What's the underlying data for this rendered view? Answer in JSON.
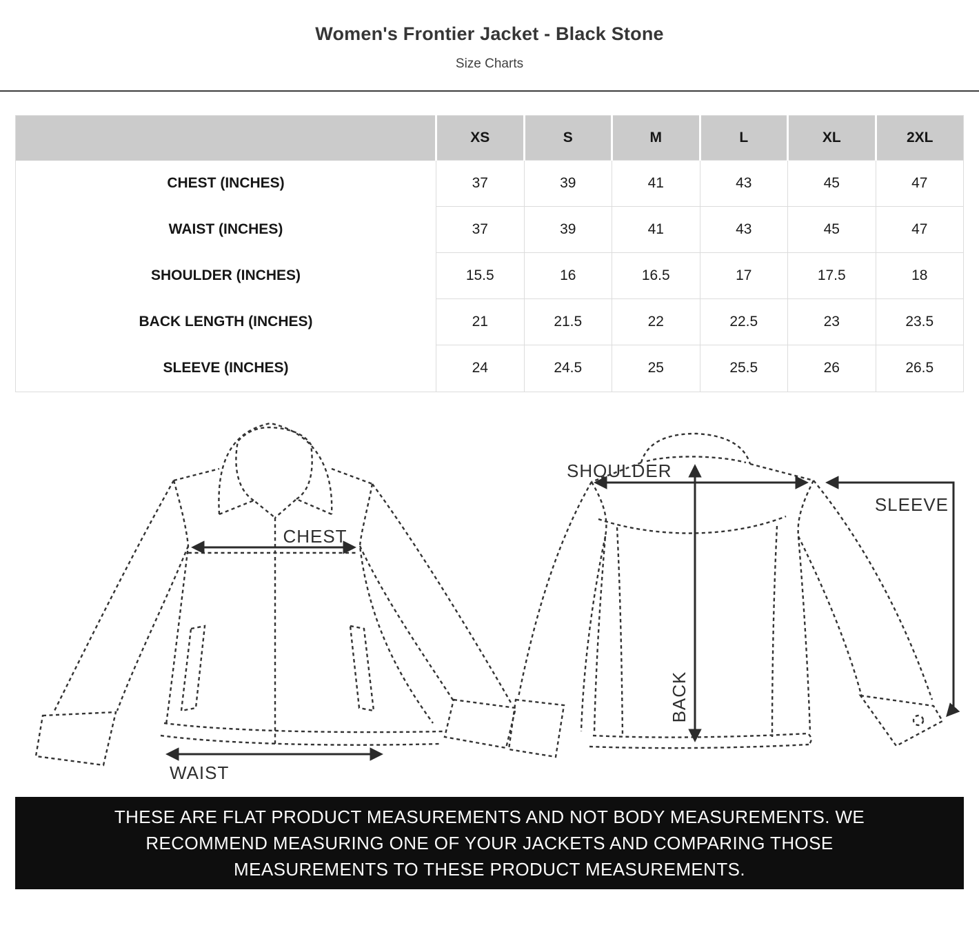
{
  "page": {
    "title": "Women's Frontier Jacket - Black Stone",
    "subtitle": "Size Charts"
  },
  "size_table": {
    "corner_label": "",
    "columns": [
      "XS",
      "S",
      "M",
      "L",
      "XL",
      "2XL"
    ],
    "rows": [
      {
        "label": "CHEST (INCHES)",
        "values": [
          "37",
          "39",
          "41",
          "43",
          "45",
          "47"
        ]
      },
      {
        "label": "WAIST (INCHES)",
        "values": [
          "37",
          "39",
          "41",
          "43",
          "45",
          "47"
        ]
      },
      {
        "label": "SHOULDER (INCHES)",
        "values": [
          "15.5",
          "16",
          "16.5",
          "17",
          "17.5",
          "18"
        ]
      },
      {
        "label": "BACK LENGTH (INCHES)",
        "values": [
          "21",
          "21.5",
          "22",
          "22.5",
          "23",
          "23.5"
        ]
      },
      {
        "label": "SLEEVE (INCHES)",
        "values": [
          "24",
          "24.5",
          "25",
          "25.5",
          "26",
          "26.5"
        ]
      }
    ]
  },
  "diagram": {
    "labels": {
      "chest": "CHEST",
      "waist": "WAIST",
      "shoulder": "SHOULDER",
      "back": "BACK",
      "sleeve": "SLEEVE"
    }
  },
  "footer": {
    "note": "THESE ARE FLAT PRODUCT MEASUREMENTS AND NOT BODY MEASUREMENTS. WE RECOMMEND MEASURING ONE OF YOUR JACKETS AND COMPARING THOSE MEASUREMENTS TO THESE PRODUCT MEASUREMENTS."
  },
  "colors": {
    "table_header_bg": "#cbcbcb",
    "footer_bg": "#0e0e0e",
    "table_border": "#dcdcdc",
    "ink": "#2f2f2f"
  }
}
